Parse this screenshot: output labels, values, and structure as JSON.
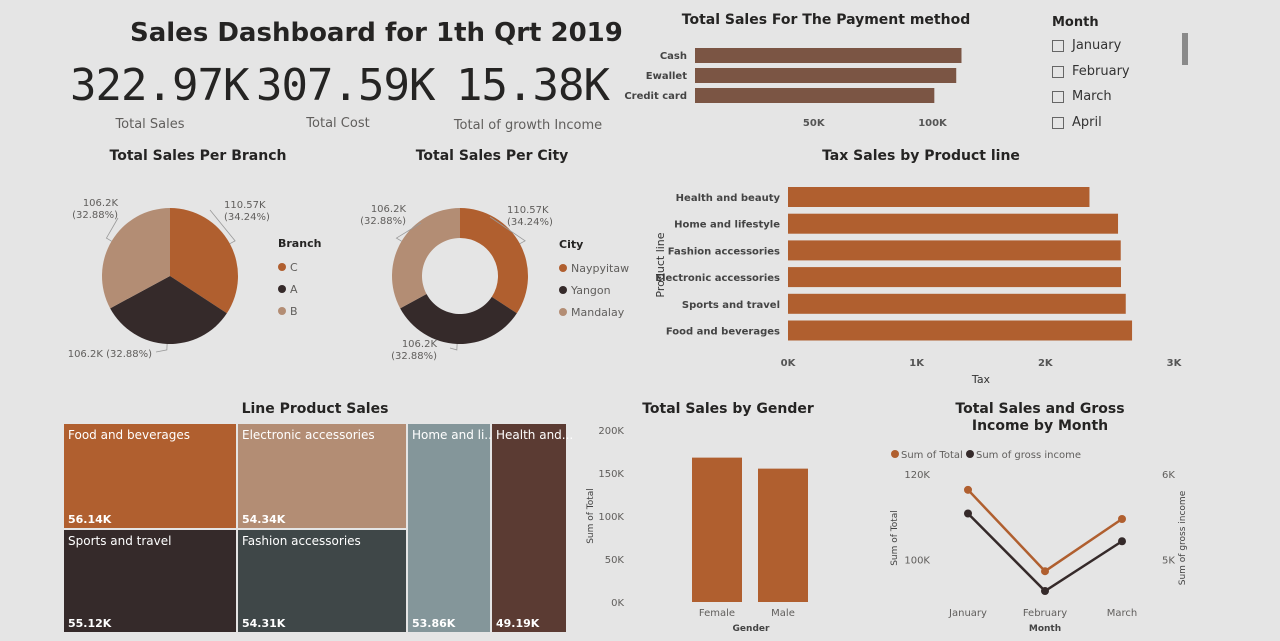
{
  "dashboard": {
    "title": "Sales Dashboard for 1th Qrt 2019",
    "kpis": [
      {
        "value": "322.97K",
        "label": "Total Sales"
      },
      {
        "value": "307.59K",
        "label": "Total Cost"
      },
      {
        "value": "15.38K",
        "label": "Total of growth Income"
      }
    ]
  },
  "colors": {
    "orange": "#b05f2f",
    "dark": "#352a2a",
    "tan": "#b38d74",
    "brown_bar": "#7b5544",
    "slate": "#3f4748",
    "grayblue": "#84969a",
    "maroon": "#5b3b33"
  },
  "month_filter": {
    "title": "Month",
    "options": [
      "January",
      "February",
      "March",
      "April"
    ]
  },
  "chart_data": [
    {
      "id": "payment",
      "type": "bar",
      "orientation": "horizontal",
      "title": "Total Sales For The Payment method",
      "categories": [
        "Cash",
        "Ewallet",
        "Credit card"
      ],
      "values": [
        112207,
        109993,
        100767
      ],
      "xlim": [
        0,
        120000
      ],
      "ticks": [
        {
          "v": 50000,
          "label": "50K"
        },
        {
          "v": 100000,
          "label": "100K"
        }
      ],
      "grid": false
    },
    {
      "id": "branch",
      "type": "pie",
      "title": "Total Sales Per Branch",
      "legend_title": "Branch",
      "legend_position": "right",
      "categories": [
        "C",
        "A",
        "B"
      ],
      "values": [
        110570,
        106200,
        106200
      ],
      "data_labels": [
        "110.57K\n(34.24%)",
        "106.2K (32.88%)",
        "106.2K\n(32.88%)"
      ]
    },
    {
      "id": "city",
      "type": "pie",
      "donut": true,
      "title": "Total Sales Per City",
      "legend_title": "City",
      "legend_position": "right",
      "categories": [
        "Naypyitaw",
        "Yangon",
        "Mandalay"
      ],
      "values": [
        110570,
        106200,
        106200
      ],
      "data_labels": [
        "110.57K\n(34.24%)",
        "106.2K\n(32.88%)",
        "106.2K\n(32.88%)"
      ]
    },
    {
      "id": "tax",
      "type": "bar",
      "orientation": "horizontal",
      "title": "Tax Sales by Product line",
      "ylabel": "Product line",
      "xlabel": "Tax",
      "categories": [
        "Health and beauty",
        "Home and lifestyle",
        "Fashion accessories",
        "Electronic accessories",
        "Sports and travel",
        "Food and beverages"
      ],
      "values": [
        2343,
        2565,
        2586,
        2588,
        2625,
        2674
      ],
      "xlim": [
        0,
        3000
      ],
      "ticks": [
        {
          "v": 0,
          "label": "0K"
        },
        {
          "v": 1000,
          "label": "1K"
        },
        {
          "v": 2000,
          "label": "2K"
        },
        {
          "v": 3000,
          "label": "3K"
        }
      ]
    },
    {
      "id": "treemap",
      "type": "treemap",
      "title": "Line Product Sales",
      "items": [
        {
          "name": "Food and beverages",
          "label": "Food and beverages",
          "value": "56.14K"
        },
        {
          "name": "Electronic accessories",
          "label": "Electronic accessories",
          "value": "54.34K"
        },
        {
          "name": "Home and lifestyle",
          "label": "Home and li...",
          "value": "53.86K"
        },
        {
          "name": "Health and beauty",
          "label": "Health and...",
          "value": "49.19K"
        },
        {
          "name": "Sports and travel",
          "label": "Sports and travel",
          "value": "55.12K"
        },
        {
          "name": "Fashion accessories",
          "label": "Fashion accessories",
          "value": "54.31K"
        }
      ]
    },
    {
      "id": "gender",
      "type": "bar",
      "title": "Total Sales by Gender",
      "xlabel": "Gender",
      "ylabel": "Sum of Total",
      "categories": [
        "Female",
        "Male"
      ],
      "values": [
        167882,
        155084
      ],
      "ylim": [
        0,
        200000
      ],
      "ticks": [
        {
          "v": 0,
          "label": "0K"
        },
        {
          "v": 50000,
          "label": "50K"
        },
        {
          "v": 100000,
          "label": "100K"
        },
        {
          "v": 150000,
          "label": "150K"
        },
        {
          "v": 200000,
          "label": "200K"
        }
      ]
    },
    {
      "id": "monthly",
      "type": "line",
      "title": "Total Sales and Gross Income by Month",
      "xlabel": "Month",
      "ylabel": "Sum of Total",
      "y2label": "Sum of gross income",
      "legend_position": "top-left",
      "categories": [
        "January",
        "February",
        "March"
      ],
      "series": [
        {
          "name": "Sum of Total",
          "axis": "left",
          "values": [
            116292,
            97219,
            109456
          ]
        },
        {
          "name": "Sum of gross income",
          "axis": "right",
          "values": [
            5537,
            4629,
            5212
          ]
        }
      ],
      "ylim": [
        90000,
        120000
      ],
      "y2lim": [
        4500,
        6000
      ],
      "ticks": [
        {
          "v": 100000,
          "label": "100K"
        },
        {
          "v": 120000,
          "label": "120K"
        }
      ],
      "ticks2": [
        {
          "v": 5000,
          "label": "5K"
        },
        {
          "v": 6000,
          "label": "6K"
        }
      ]
    }
  ]
}
